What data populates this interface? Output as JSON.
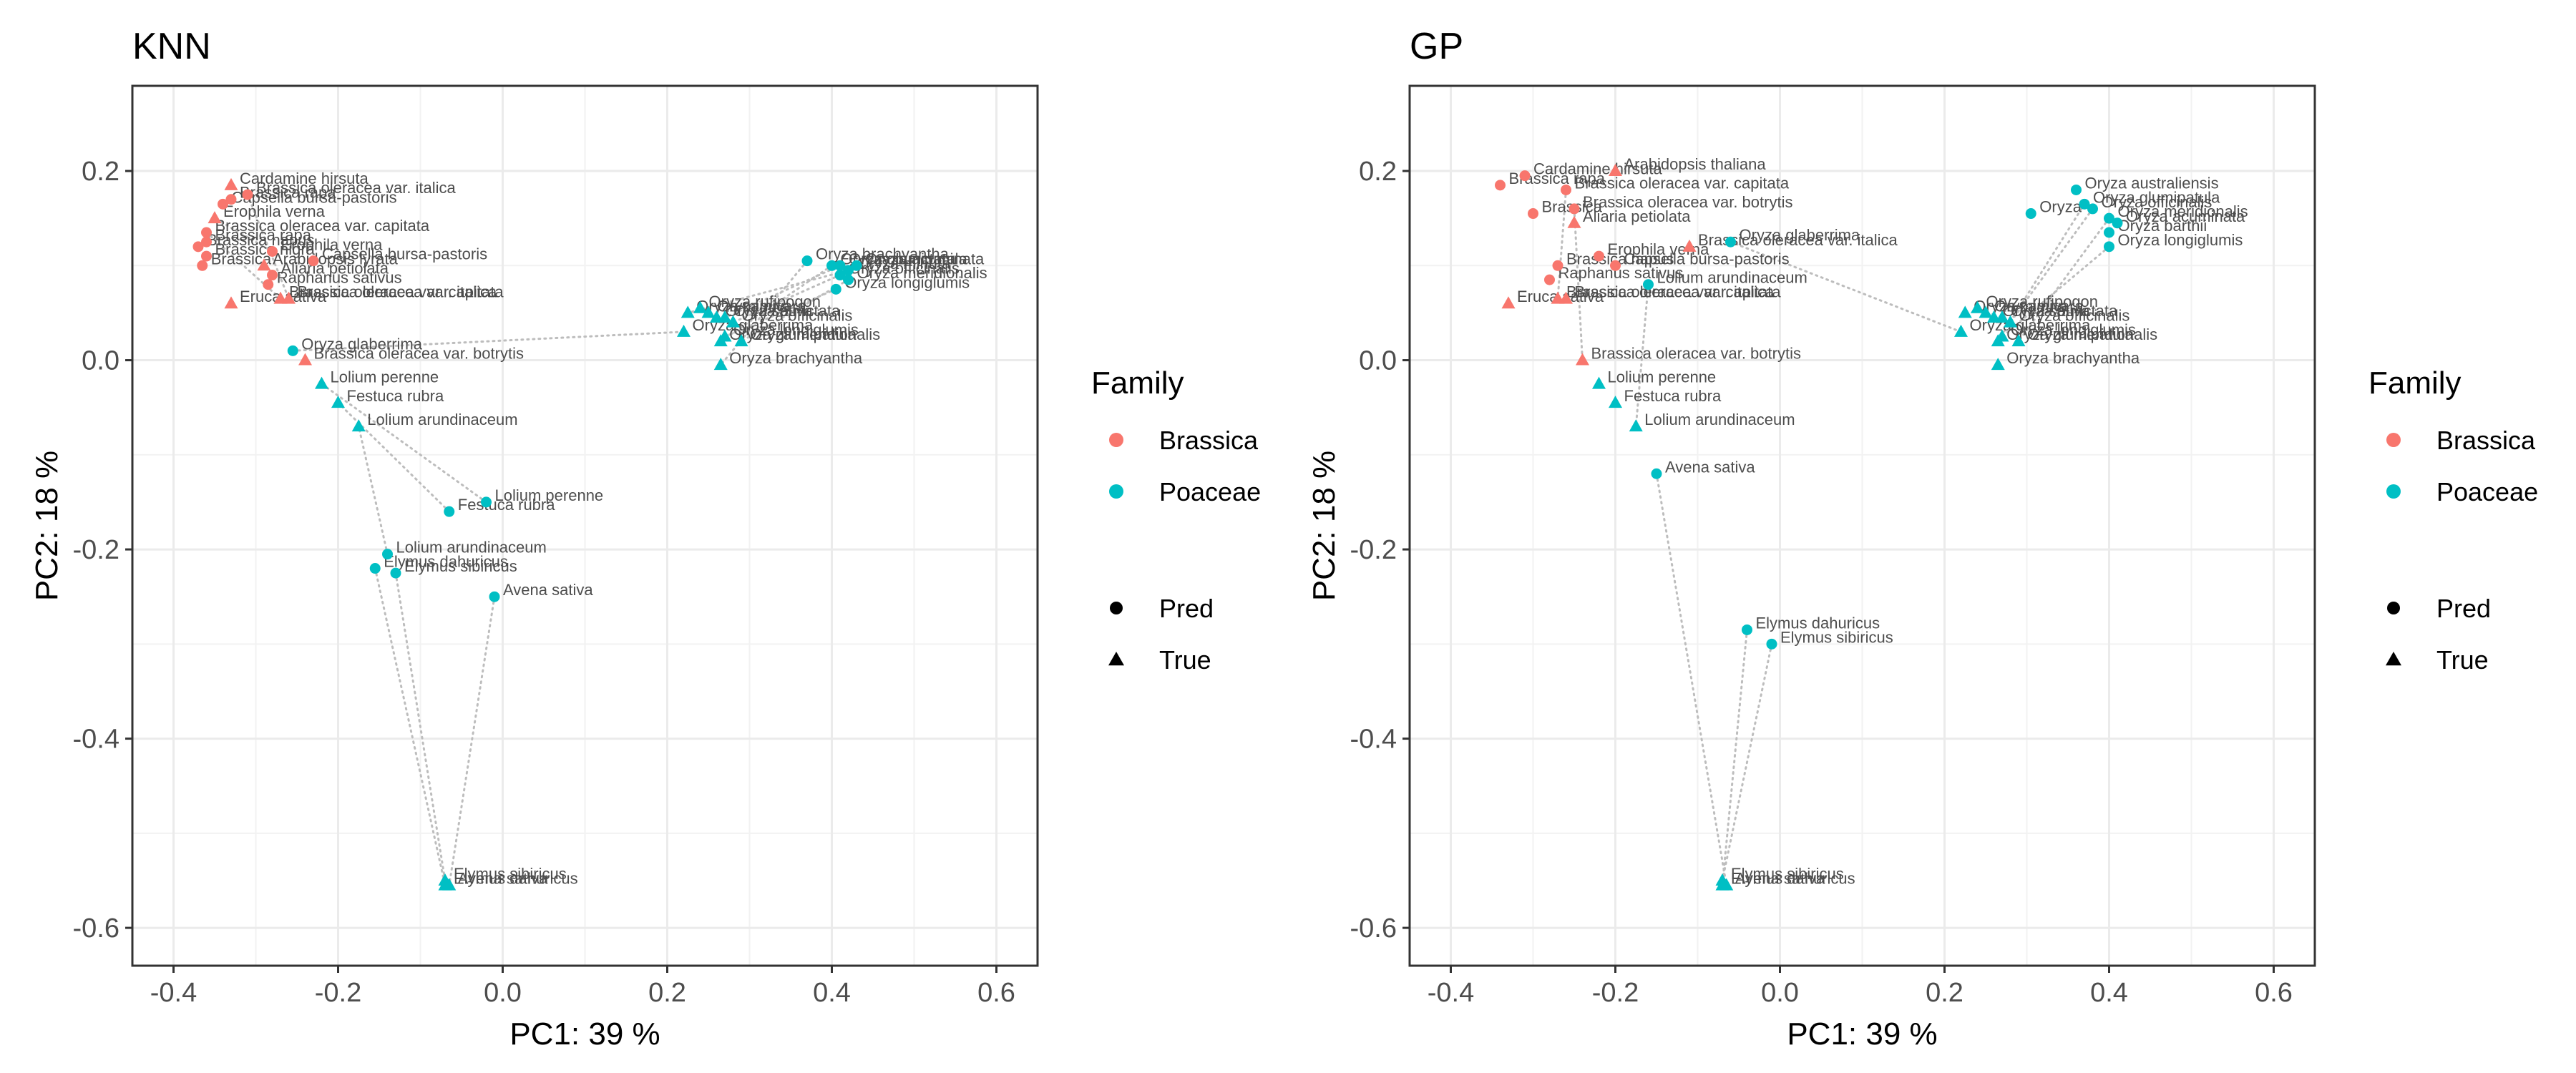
{
  "chart_data": [
    {
      "type": "scatter",
      "title": "KNN",
      "xlabel": "PC1: 39 %",
      "ylabel": "PC2: 18 %",
      "xlim": [
        -0.45,
        0.65
      ],
      "ylim": [
        -0.64,
        0.29
      ],
      "xticks": [
        -0.4,
        -0.2,
        0.0,
        0.2,
        0.4,
        0.6
      ],
      "xtick_labels": [
        "-0.4",
        "-0.2",
        "0.0",
        "0.2",
        "0.4",
        "0.6"
      ],
      "yticks": [
        -0.6,
        -0.4,
        -0.2,
        0.0,
        0.2
      ],
      "ytick_labels": [
        "-0.6",
        "-0.4",
        "-0.2",
        "0.0",
        "0.2"
      ],
      "grid": true,
      "points": [
        {
          "label": "Cardamine hirsuta",
          "x": -0.33,
          "y": 0.185,
          "family": "Brassica",
          "kind": "True"
        },
        {
          "label": "Brassica oleracea var. italica",
          "x": -0.31,
          "y": 0.175,
          "family": "Brassica",
          "kind": "Pred"
        },
        {
          "label": "Brassica rapa",
          "x": -0.33,
          "y": 0.17,
          "family": "Brassica",
          "kind": "Pred"
        },
        {
          "label": "Capsella bursa-pastoris",
          "x": -0.34,
          "y": 0.165,
          "family": "Brassica",
          "kind": "Pred"
        },
        {
          "label": "Erophila verna",
          "x": -0.35,
          "y": 0.15,
          "family": "Brassica",
          "kind": "True"
        },
        {
          "label": "Brassica oleracea var. capitata",
          "x": -0.36,
          "y": 0.135,
          "family": "Brassica",
          "kind": "Pred"
        },
        {
          "label": "Brassica rapa",
          "x": -0.36,
          "y": 0.125,
          "family": "Brassica",
          "kind": "Pred"
        },
        {
          "label": "Brassica napus",
          "x": -0.37,
          "y": 0.12,
          "family": "Brassica",
          "kind": "Pred"
        },
        {
          "label": "Brassica nigra",
          "x": -0.36,
          "y": 0.11,
          "family": "Brassica",
          "kind": "Pred"
        },
        {
          "label": "Brassica",
          "x": -0.365,
          "y": 0.1,
          "family": "Brassica",
          "kind": "Pred"
        },
        {
          "label": "Erophila verna",
          "x": -0.28,
          "y": 0.115,
          "family": "Brassica",
          "kind": "Pred"
        },
        {
          "label": "Capsella bursa-pastoris",
          "x": -0.23,
          "y": 0.105,
          "family": "Brassica",
          "kind": "Pred"
        },
        {
          "label": "Arabidopsis lyrata",
          "x": -0.29,
          "y": 0.1,
          "family": "Brassica",
          "kind": "True"
        },
        {
          "label": "Aliaria petiolata",
          "x": -0.28,
          "y": 0.09,
          "family": "Brassica",
          "kind": "Pred"
        },
        {
          "label": "Raphanus sativus",
          "x": -0.285,
          "y": 0.08,
          "family": "Brassica",
          "kind": "Pred"
        },
        {
          "label": "Brassica oleracea var. capitata",
          "x": -0.27,
          "y": 0.065,
          "family": "Brassica",
          "kind": "True"
        },
        {
          "label": "Brassica oleracea var. italica",
          "x": -0.26,
          "y": 0.065,
          "family": "Brassica",
          "kind": "True"
        },
        {
          "label": "Eruca sativa",
          "x": -0.33,
          "y": 0.06,
          "family": "Brassica",
          "kind": "True"
        },
        {
          "label": "Brassica oleracea var. botrytis",
          "x": -0.24,
          "y": 0.0,
          "family": "Brassica",
          "kind": "True"
        },
        {
          "label": "Oryza glaberrima",
          "x": -0.255,
          "y": 0.01,
          "family": "Poaceae",
          "kind": "Pred"
        },
        {
          "label": "Lolium perenne",
          "x": -0.22,
          "y": -0.025,
          "family": "Poaceae",
          "kind": "True"
        },
        {
          "label": "Festuca rubra",
          "x": -0.2,
          "y": -0.045,
          "family": "Poaceae",
          "kind": "True"
        },
        {
          "label": "Lolium arundinaceum",
          "x": -0.175,
          "y": -0.07,
          "family": "Poaceae",
          "kind": "True"
        },
        {
          "label": "Lolium perenne",
          "x": -0.02,
          "y": -0.15,
          "family": "Poaceae",
          "kind": "Pred"
        },
        {
          "label": "Festuca rubra",
          "x": -0.065,
          "y": -0.16,
          "family": "Poaceae",
          "kind": "Pred"
        },
        {
          "label": "Lolium arundinaceum",
          "x": -0.14,
          "y": -0.205,
          "family": "Poaceae",
          "kind": "Pred"
        },
        {
          "label": "Elymus dahuricus",
          "x": -0.155,
          "y": -0.22,
          "family": "Poaceae",
          "kind": "Pred"
        },
        {
          "label": "Elymus sibiricus",
          "x": -0.13,
          "y": -0.225,
          "family": "Poaceae",
          "kind": "Pred"
        },
        {
          "label": "Avena sativa",
          "x": -0.01,
          "y": -0.25,
          "family": "Poaceae",
          "kind": "Pred"
        },
        {
          "label": "Elymus sibiricus",
          "x": -0.07,
          "y": -0.55,
          "family": "Poaceae",
          "kind": "True"
        },
        {
          "label": "Elymus dahuricus",
          "x": -0.07,
          "y": -0.555,
          "family": "Poaceae",
          "kind": "True"
        },
        {
          "label": "Avena sativa",
          "x": -0.065,
          "y": -0.555,
          "family": "Poaceae",
          "kind": "True"
        },
        {
          "label": "Oryza brachyantha",
          "x": 0.37,
          "y": 0.105,
          "family": "Poaceae",
          "kind": "Pred"
        },
        {
          "label": "Oryza glumipatula",
          "x": 0.4,
          "y": 0.1,
          "family": "Poaceae",
          "kind": "Pred"
        },
        {
          "label": "Oryza punctata",
          "x": 0.41,
          "y": 0.1,
          "family": "Poaceae",
          "kind": "Pred"
        },
        {
          "label": "Oryza minuta",
          "x": 0.42,
          "y": 0.095,
          "family": "Poaceae",
          "kind": "Pred"
        },
        {
          "label": "Oryza acuminata",
          "x": 0.43,
          "y": 0.1,
          "family": "Poaceae",
          "kind": "Pred"
        },
        {
          "label": "Oryza officinalis",
          "x": 0.41,
          "y": 0.09,
          "family": "Poaceae",
          "kind": "Pred"
        },
        {
          "label": "Oryza meridionalis",
          "x": 0.42,
          "y": 0.085,
          "family": "Poaceae",
          "kind": "Pred"
        },
        {
          "label": "Oryza longiglumis",
          "x": 0.405,
          "y": 0.075,
          "family": "Poaceae",
          "kind": "Pred"
        },
        {
          "label": "Oryza rufipogon",
          "x": 0.24,
          "y": 0.055,
          "family": "Poaceae",
          "kind": "True"
        },
        {
          "label": "Oryza nivara",
          "x": 0.25,
          "y": 0.05,
          "family": "Poaceae",
          "kind": "True"
        },
        {
          "label": "Oryza sativa",
          "x": 0.26,
          "y": 0.045,
          "family": "Poaceae",
          "kind": "True"
        },
        {
          "label": "Oryza punctata",
          "x": 0.27,
          "y": 0.045,
          "family": "Poaceae",
          "kind": "True"
        },
        {
          "label": "Oryza officinalis",
          "x": 0.28,
          "y": 0.04,
          "family": "Poaceae",
          "kind": "True"
        },
        {
          "label": "Oryza minuta",
          "x": 0.225,
          "y": 0.05,
          "family": "Poaceae",
          "kind": "True"
        },
        {
          "label": "Oryza glaberrima",
          "x": 0.22,
          "y": 0.03,
          "family": "Poaceae",
          "kind": "True"
        },
        {
          "label": "Oryza longiglumis",
          "x": 0.27,
          "y": 0.025,
          "family": "Poaceae",
          "kind": "True"
        },
        {
          "label": "Oryza glumipatula",
          "x": 0.265,
          "y": 0.02,
          "family": "Poaceae",
          "kind": "True"
        },
        {
          "label": "Oryza meridionalis",
          "x": 0.29,
          "y": 0.02,
          "family": "Poaceae",
          "kind": "True"
        },
        {
          "label": "Oryza brachyantha",
          "x": 0.265,
          "y": -0.005,
          "family": "Poaceae",
          "kind": "True"
        }
      ]
    },
    {
      "type": "scatter",
      "title": "GP",
      "xlabel": "PC1: 39 %",
      "ylabel": "PC2: 18 %",
      "xlim": [
        -0.45,
        0.65
      ],
      "ylim": [
        -0.64,
        0.29
      ],
      "xticks": [
        -0.4,
        -0.2,
        0.0,
        0.2,
        0.4,
        0.6
      ],
      "xtick_labels": [
        "-0.4",
        "-0.2",
        "0.0",
        "0.2",
        "0.4",
        "0.6"
      ],
      "yticks": [
        -0.6,
        -0.4,
        -0.2,
        0.0,
        0.2
      ],
      "ytick_labels": [
        "-0.6",
        "-0.4",
        "-0.2",
        "0.0",
        "0.2"
      ],
      "grid": true,
      "points": [
        {
          "label": "Arabidopsis thaliana",
          "x": -0.2,
          "y": 0.2,
          "family": "Brassica",
          "kind": "True"
        },
        {
          "label": "Cardamine hirsuta",
          "x": -0.31,
          "y": 0.195,
          "family": "Brassica",
          "kind": "Pred"
        },
        {
          "label": "Brassica rapa",
          "x": -0.34,
          "y": 0.185,
          "family": "Brassica",
          "kind": "Pred"
        },
        {
          "label": "Brassica oleracea var. capitata",
          "x": -0.26,
          "y": 0.18,
          "family": "Brassica",
          "kind": "Pred"
        },
        {
          "label": "Brassica oleracea var. botrytis",
          "x": -0.25,
          "y": 0.16,
          "family": "Brassica",
          "kind": "Pred"
        },
        {
          "label": "Brassica",
          "x": -0.3,
          "y": 0.155,
          "family": "Brassica",
          "kind": "Pred"
        },
        {
          "label": "Aliaria petiolata",
          "x": -0.25,
          "y": 0.145,
          "family": "Brassica",
          "kind": "True"
        },
        {
          "label": "Brassica oleracea var. italica",
          "x": -0.11,
          "y": 0.12,
          "family": "Brassica",
          "kind": "True"
        },
        {
          "label": "Erophila verna",
          "x": -0.22,
          "y": 0.11,
          "family": "Brassica",
          "kind": "Pred"
        },
        {
          "label": "Capsella bursa-pastoris",
          "x": -0.2,
          "y": 0.1,
          "family": "Brassica",
          "kind": "Pred"
        },
        {
          "label": "Brassica napus",
          "x": -0.27,
          "y": 0.1,
          "family": "Brassica",
          "kind": "Pred"
        },
        {
          "label": "Raphanus sativus",
          "x": -0.28,
          "y": 0.085,
          "family": "Brassica",
          "kind": "Pred"
        },
        {
          "label": "Eruca sativa",
          "x": -0.33,
          "y": 0.06,
          "family": "Brassica",
          "kind": "True"
        },
        {
          "label": "Brassica oleracea var. capitata",
          "x": -0.27,
          "y": 0.065,
          "family": "Brassica",
          "kind": "True"
        },
        {
          "label": "Brassica oleracea var. italica",
          "x": -0.26,
          "y": 0.065,
          "family": "Brassica",
          "kind": "True"
        },
        {
          "label": "Brassica oleracea var. botrytis",
          "x": -0.24,
          "y": 0.0,
          "family": "Brassica",
          "kind": "True"
        },
        {
          "label": "Oryza glaberrima",
          "x": -0.06,
          "y": 0.125,
          "family": "Poaceae",
          "kind": "Pred"
        },
        {
          "label": "Lolium arundinaceum",
          "x": -0.16,
          "y": 0.08,
          "family": "Poaceae",
          "kind": "Pred"
        },
        {
          "label": "Lolium perenne",
          "x": -0.22,
          "y": -0.025,
          "family": "Poaceae",
          "kind": "True"
        },
        {
          "label": "Festuca rubra",
          "x": -0.2,
          "y": -0.045,
          "family": "Poaceae",
          "kind": "True"
        },
        {
          "label": "Lolium arundinaceum",
          "x": -0.175,
          "y": -0.07,
          "family": "Poaceae",
          "kind": "True"
        },
        {
          "label": "Avena sativa",
          "x": -0.15,
          "y": -0.12,
          "family": "Poaceae",
          "kind": "Pred"
        },
        {
          "label": "Elymus dahuricus",
          "x": -0.04,
          "y": -0.285,
          "family": "Poaceae",
          "kind": "Pred"
        },
        {
          "label": "Elymus sibiricus",
          "x": -0.01,
          "y": -0.3,
          "family": "Poaceae",
          "kind": "Pred"
        },
        {
          "label": "Elymus sibiricus",
          "x": -0.07,
          "y": -0.55,
          "family": "Poaceae",
          "kind": "True"
        },
        {
          "label": "Elymus dahuricus",
          "x": -0.07,
          "y": -0.555,
          "family": "Poaceae",
          "kind": "True"
        },
        {
          "label": "Avena sativa",
          "x": -0.065,
          "y": -0.555,
          "family": "Poaceae",
          "kind": "True"
        },
        {
          "label": "Oryza australiensis",
          "x": 0.36,
          "y": 0.18,
          "family": "Poaceae",
          "kind": "Pred"
        },
        {
          "label": "Oryza glumipatula",
          "x": 0.37,
          "y": 0.165,
          "family": "Poaceae",
          "kind": "Pred"
        },
        {
          "label": "Oryza",
          "x": 0.305,
          "y": 0.155,
          "family": "Poaceae",
          "kind": "Pred"
        },
        {
          "label": "Oryza officinalis",
          "x": 0.38,
          "y": 0.16,
          "family": "Poaceae",
          "kind": "Pred"
        },
        {
          "label": "Oryza meridionalis",
          "x": 0.4,
          "y": 0.15,
          "family": "Poaceae",
          "kind": "Pred"
        },
        {
          "label": "Oryza acuminata",
          "x": 0.41,
          "y": 0.145,
          "family": "Poaceae",
          "kind": "Pred"
        },
        {
          "label": "Oryza barthii",
          "x": 0.4,
          "y": 0.135,
          "family": "Poaceae",
          "kind": "Pred"
        },
        {
          "label": "Oryza longiglumis",
          "x": 0.4,
          "y": 0.12,
          "family": "Poaceae",
          "kind": "Pred"
        },
        {
          "label": "Oryza rufipogon",
          "x": 0.24,
          "y": 0.055,
          "family": "Poaceae",
          "kind": "True"
        },
        {
          "label": "Oryza nivara",
          "x": 0.25,
          "y": 0.05,
          "family": "Poaceae",
          "kind": "True"
        },
        {
          "label": "Oryza sativa",
          "x": 0.26,
          "y": 0.045,
          "family": "Poaceae",
          "kind": "True"
        },
        {
          "label": "Oryza punctata",
          "x": 0.27,
          "y": 0.045,
          "family": "Poaceae",
          "kind": "True"
        },
        {
          "label": "Oryza officinalis",
          "x": 0.28,
          "y": 0.04,
          "family": "Poaceae",
          "kind": "True"
        },
        {
          "label": "Oryza minuta",
          "x": 0.225,
          "y": 0.05,
          "family": "Poaceae",
          "kind": "True"
        },
        {
          "label": "Oryza glaberrima",
          "x": 0.22,
          "y": 0.03,
          "family": "Poaceae",
          "kind": "True"
        },
        {
          "label": "Oryza longiglumis",
          "x": 0.27,
          "y": 0.025,
          "family": "Poaceae",
          "kind": "True"
        },
        {
          "label": "Oryza glumipatula",
          "x": 0.265,
          "y": 0.02,
          "family": "Poaceae",
          "kind": "True"
        },
        {
          "label": "Oryza meridionalis",
          "x": 0.29,
          "y": 0.02,
          "family": "Poaceae",
          "kind": "True"
        },
        {
          "label": "Oryza brachyantha",
          "x": 0.265,
          "y": -0.005,
          "family": "Poaceae",
          "kind": "True"
        }
      ]
    }
  ],
  "legend": {
    "title": "Family",
    "families": [
      {
        "name": "Brassica",
        "color": "#F8766D"
      },
      {
        "name": "Poaceae",
        "color": "#00BFC4"
      }
    ],
    "shapes": [
      {
        "name": "Pred",
        "shape": "circle"
      },
      {
        "name": "True",
        "shape": "triangle"
      }
    ]
  }
}
